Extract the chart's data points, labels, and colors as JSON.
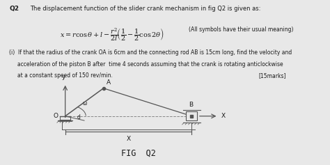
{
  "bg_color": "#e8e8e8",
  "panel_color": "#f0f0f0",
  "text_color": "#1a1a1a",
  "line_color": "#555555",
  "dash_color": "#888888",
  "q2_label": "Q2",
  "title_text": "The displacement function of the slider crank mechanism in fig Q2 is given as:",
  "formula_display": "$x = r\\cos\\theta + l - \\dfrac{r^2}{2l}\\!\\left(\\dfrac{1}{2} - \\dfrac{1}{2}\\cos 2\\theta\\right)$",
  "meaning_text": "(All symbols have their usual meaning)",
  "part_line1": "(i)  If that the radius of the crank OA is 6cm and the connecting rod AB is 15cm long, find the velocity and",
  "part_line2": "     acceleration of the piston B after  time 4 seconds assuming that the crank is rotating anticlockwise",
  "part_line3": "     at a constant speed of 150 rev/min.",
  "marks_text": "[15marks]",
  "fig_label": "FIG  Q2",
  "omega_label": "ω",
  "d_label": "d"
}
